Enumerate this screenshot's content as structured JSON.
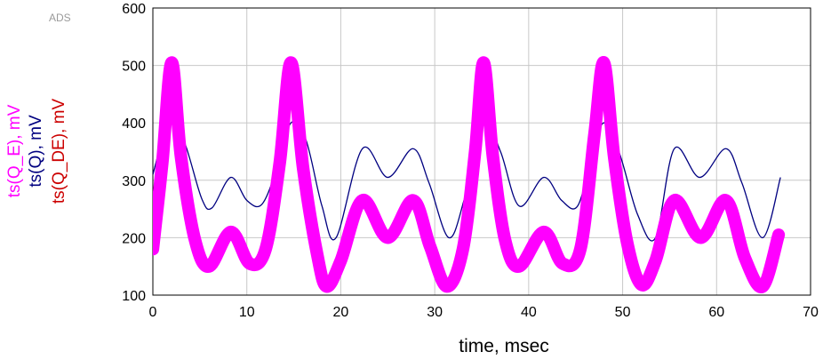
{
  "chart_data": {
    "type": "line",
    "watermark": "ADS",
    "xlabel": "time, msec",
    "ylabels": [
      {
        "text": "ts(Q_E), mV",
        "color": "#ff00ff"
      },
      {
        "text": "ts(Q), mV",
        "color": "#000080"
      },
      {
        "text": "ts(Q_DE), mV",
        "color": "#cc0000"
      }
    ],
    "xlim": [
      0,
      70
    ],
    "ylim": [
      100,
      600
    ],
    "xticks": [
      0,
      10,
      20,
      30,
      40,
      50,
      60,
      70
    ],
    "yticks": [
      100,
      200,
      300,
      400,
      500,
      600
    ],
    "grid": true,
    "series": [
      {
        "label_ref": "ts(Q)",
        "color": "#000080",
        "style": "thin",
        "x": [
          0,
          1.2,
          2.2,
          3.5,
          5.2,
          6.3,
          8.3,
          10.0,
          11.6,
          13.2,
          14.7,
          16.3,
          18.0,
          19.5,
          22.3,
          25.0,
          27.7,
          29.4,
          31.5,
          33.2,
          35.2,
          37.0,
          39.0,
          41.6,
          43.5,
          45.2,
          46.7,
          48.0,
          49.7,
          51.6,
          53.5,
          55.5,
          58.2,
          61.0,
          62.7,
          64.9,
          66.8
        ],
        "y": [
          310,
          380,
          400,
          360,
          268,
          252,
          305,
          265,
          258,
          320,
          400,
          370,
          255,
          200,
          355,
          305,
          355,
          295,
          200,
          270,
          400,
          350,
          255,
          305,
          265,
          255,
          340,
          400,
          345,
          240,
          200,
          355,
          305,
          355,
          295,
          200,
          305
        ]
      },
      {
        "label_ref": "ts(Q_E)",
        "color": "#ff00ff",
        "style": "band",
        "band_halfwidth": 11,
        "x": [
          0,
          1.0,
          2.0,
          3.0,
          4.5,
          6.0,
          8.3,
          10.3,
          12.0,
          13.5,
          14.7,
          16.0,
          17.5,
          18.5,
          20.0,
          22.3,
          25.0,
          27.7,
          29.5,
          31.3,
          33.0,
          34.3,
          35.2,
          36.2,
          37.5,
          39.0,
          41.6,
          43.6,
          45.5,
          47.0,
          48.0,
          49.1,
          50.5,
          52.0,
          53.5,
          55.5,
          58.3,
          61.0,
          63.0,
          64.9,
          66.6
        ],
        "y": [
          180,
          330,
          505,
          340,
          195,
          150,
          210,
          155,
          180,
          330,
          505,
          320,
          170,
          115,
          160,
          265,
          200,
          265,
          185,
          115,
          180,
          350,
          505,
          340,
          195,
          150,
          210,
          155,
          180,
          380,
          505,
          340,
          190,
          118,
          160,
          265,
          200,
          265,
          165,
          115,
          205
        ]
      }
    ]
  }
}
